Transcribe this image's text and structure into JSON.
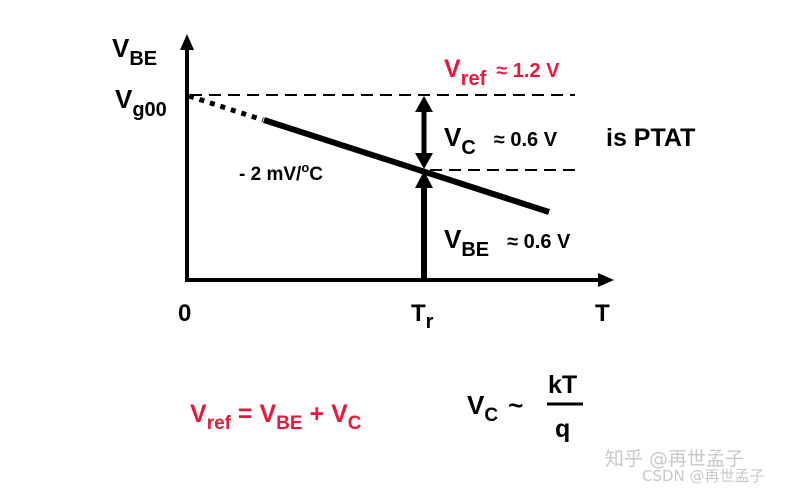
{
  "axes": {
    "y_label_main": "V",
    "y_label_sub": "BE",
    "x_label": "T",
    "origin_label": "0",
    "intercept_main": "V",
    "intercept_sub": "g00",
    "tr_main": "T",
    "tr_sub": "r"
  },
  "slope_label": {
    "prefix": "- 2 mV/",
    "sup": "o",
    "suffix": "C"
  },
  "vref_label": {
    "main": "V",
    "sub": "ref",
    "value": "≈ 1.2 V"
  },
  "vc_label": {
    "main": "V",
    "sub": "C",
    "value": "≈ 0.6 V",
    "note": "is PTAT"
  },
  "vbe_label": {
    "main": "V",
    "sub": "BE",
    "value": "≈ 0.6 V"
  },
  "equation1": {
    "v1": "V",
    "v1_sub": "ref",
    "eq": " = ",
    "v2": "V",
    "v2_sub": "BE",
    "plus": " + ",
    "v3": "V",
    "v3_sub": "C"
  },
  "equation2": {
    "v": "V",
    "v_sub": "C",
    "tilde": "~",
    "numerator": "kT",
    "denominator": "q"
  },
  "watermark": {
    "line1": "知乎 @再世孟子",
    "line2": "CSDN @再世孟子"
  },
  "colors": {
    "accent": "#e8193c",
    "line": "#000000"
  }
}
